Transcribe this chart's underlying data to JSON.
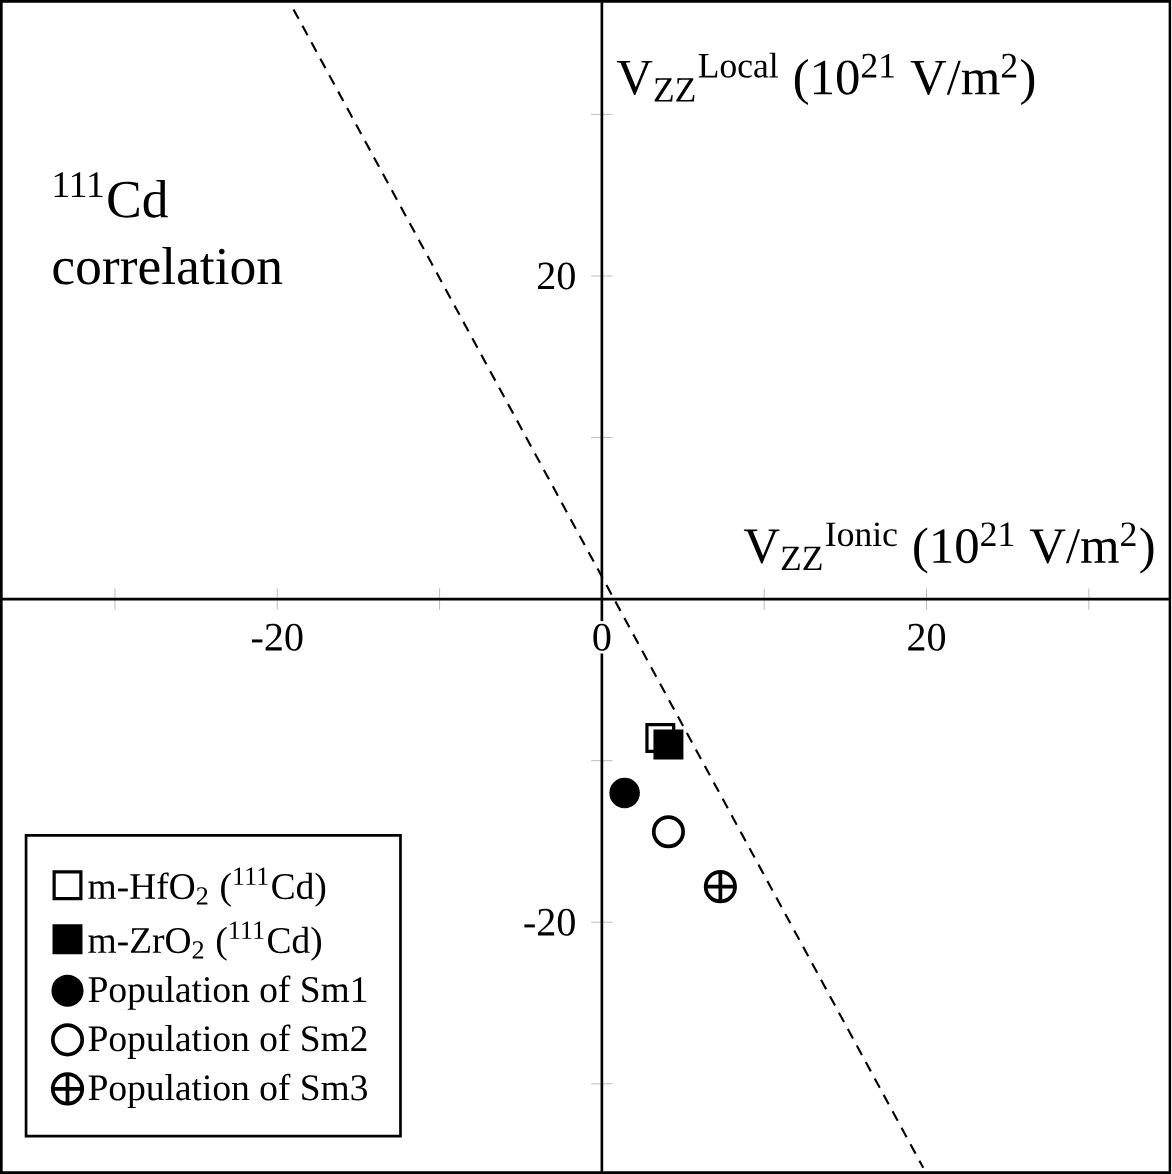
{
  "chart_data": {
    "type": "scatter",
    "xlabel": "V$_{ZZ}$$^{Ionic}$ (10$^{21}$ V/m$^{2}$)",
    "ylabel": "V$_{ZZ}$$^{Local}$ (10$^{21}$ V/m$^{2}$)",
    "annotations": [
      "$^{111}$Cd correlation"
    ],
    "xlim": [
      -37,
      35
    ],
    "ylim": [
      -35.5,
      37
    ],
    "xticks": [
      {
        "value": -30,
        "label": null
      },
      -20,
      {
        "value": -10,
        "label": null
      },
      0,
      {
        "value": 10,
        "label": null
      },
      20,
      {
        "value": 30,
        "label": null
      }
    ],
    "yticks": [
      {
        "value": -30,
        "label": null
      },
      -20,
      {
        "value": -10,
        "label": null
      },
      {
        "value": 10,
        "label": null
      },
      20,
      {
        "value": 30,
        "label": null
      }
    ],
    "legend": "bottom left",
    "grid": false,
    "series": [
      {
        "type": "line",
        "line_style": "dashed",
        "marker": "none",
        "color": "#000000",
        "x": [
          -19,
          19.8
        ],
        "values": [
          36.5,
          -35.2
        ]
      },
      {
        "name": "m-HfO$_{2}$ ($^{111}$Cd)",
        "marker": "square",
        "color": "#000000",
        "x": [
          3.6
        ],
        "values": [
          -8.6
        ]
      },
      {
        "name": "m-ZrO$_{2}$ ($^{111}$Cd)",
        "marker": "square",
        "color": "#000000",
        "x": [
          4.1
        ],
        "values": [
          -9.0
        ]
      },
      {
        "name": "Population of Sm1",
        "marker": "circle",
        "color": "#000000",
        "x": [
          1.4
        ],
        "values": [
          -12.0
        ]
      },
      {
        "name": "Population of Sm2",
        "marker": "circle",
        "color": "#000000",
        "x": [
          4.1
        ],
        "values": [
          -14.4
        ]
      },
      {
        "name": "Population of Sm3",
        "marker": "cross",
        "color": "#000000",
        "x": [
          7.3
        ],
        "values": [
          -17.8
        ]
      }
    ]
  }
}
